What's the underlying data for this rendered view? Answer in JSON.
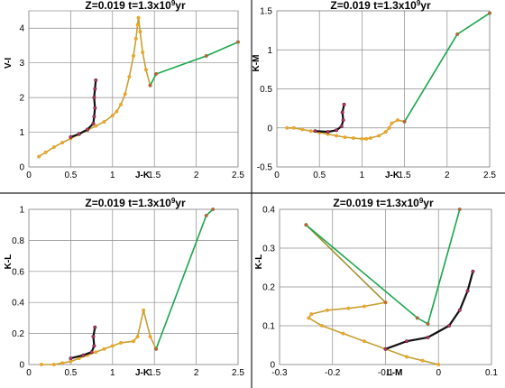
{
  "chart_data": [
    {
      "type": "line",
      "title_main": "Z=0.019   t=1.3x10",
      "title_exp": "9",
      "title_unit": "yr",
      "xlabel": "J-K",
      "ylabel": "V-I",
      "xlim": [
        0,
        2.5
      ],
      "ylim": [
        0,
        4.5
      ],
      "xticks": [
        "0",
        "0.5",
        "1",
        "1.5",
        "2",
        "2.5"
      ],
      "yticks": [
        "0",
        "1",
        "2",
        "3",
        "4"
      ],
      "grid": true,
      "series": [
        {
          "color": "#c8a032",
          "marker": "#f5a623",
          "values": [
            [
              0.12,
              0.3
            ],
            [
              0.2,
              0.42
            ],
            [
              0.3,
              0.57
            ],
            [
              0.4,
              0.7
            ],
            [
              0.5,
              0.82
            ],
            [
              0.6,
              0.94
            ],
            [
              0.7,
              1.06
            ],
            [
              0.8,
              1.18
            ],
            [
              0.9,
              1.3
            ],
            [
              1.0,
              1.48
            ],
            [
              1.05,
              1.6
            ],
            [
              1.1,
              1.8
            ],
            [
              1.15,
              2.1
            ],
            [
              1.2,
              2.6
            ],
            [
              1.25,
              3.2
            ],
            [
              1.28,
              3.7
            ],
            [
              1.3,
              4.1
            ],
            [
              1.31,
              4.3
            ],
            [
              1.33,
              3.9
            ],
            [
              1.36,
              3.3
            ],
            [
              1.4,
              2.8
            ],
            [
              1.45,
              2.35
            ]
          ]
        },
        {
          "color": "#1aa64b",
          "marker": "#e05030",
          "values": [
            [
              1.45,
              2.35
            ],
            [
              1.52,
              2.68
            ],
            [
              2.12,
              3.2
            ],
            [
              2.5,
              3.6
            ]
          ]
        },
        {
          "color": "#111111",
          "marker": "#c0306a",
          "values": [
            [
              0.5,
              0.86
            ],
            [
              0.6,
              0.95
            ],
            [
              0.7,
              1.08
            ],
            [
              0.77,
              1.25
            ],
            [
              0.78,
              1.45
            ],
            [
              0.79,
              1.7
            ],
            [
              0.78,
              2.0
            ],
            [
              0.79,
              2.25
            ],
            [
              0.8,
              2.5
            ]
          ]
        }
      ]
    },
    {
      "type": "line",
      "title_main": "Z=0.019   t=1.3x10",
      "title_exp": "9",
      "title_unit": "yr",
      "xlabel": "J-K",
      "ylabel": "K-M",
      "xlim": [
        0,
        2.5
      ],
      "ylim": [
        -0.5,
        1.5
      ],
      "xticks": [
        "0",
        "0.5",
        "1",
        "1.5",
        "2",
        "2.5"
      ],
      "yticks": [
        "-0.5",
        "0",
        "0.5",
        "1",
        "1.5"
      ],
      "grid": true,
      "series": [
        {
          "color": "#c8a032",
          "marker": "#f5a623",
          "values": [
            [
              0.12,
              0.0
            ],
            [
              0.2,
              0.0
            ],
            [
              0.3,
              -0.02
            ],
            [
              0.4,
              -0.04
            ],
            [
              0.5,
              -0.06
            ],
            [
              0.6,
              -0.08
            ],
            [
              0.7,
              -0.1
            ],
            [
              0.8,
              -0.12
            ],
            [
              0.9,
              -0.13
            ],
            [
              1.0,
              -0.14
            ],
            [
              1.05,
              -0.14
            ],
            [
              1.1,
              -0.13
            ],
            [
              1.2,
              -0.1
            ],
            [
              1.28,
              -0.05
            ],
            [
              1.32,
              0.0
            ],
            [
              1.35,
              0.06
            ],
            [
              1.42,
              0.1
            ],
            [
              1.5,
              0.08
            ]
          ]
        },
        {
          "color": "#1aa64b",
          "marker": "#e05030",
          "values": [
            [
              1.5,
              0.08
            ],
            [
              2.12,
              1.2
            ],
            [
              2.5,
              1.47
            ]
          ]
        },
        {
          "color": "#111111",
          "marker": "#c0306a",
          "values": [
            [
              0.45,
              -0.04
            ],
            [
              0.6,
              -0.05
            ],
            [
              0.7,
              -0.03
            ],
            [
              0.76,
              0.02
            ],
            [
              0.78,
              0.1
            ],
            [
              0.77,
              0.2
            ],
            [
              0.79,
              0.3
            ]
          ]
        }
      ]
    },
    {
      "type": "line",
      "title_main": "Z=0.019   t=1.3x10",
      "title_exp": "9",
      "title_unit": "yr",
      "xlabel": "J-K",
      "ylabel": "K-L",
      "xlim": [
        0,
        2.5
      ],
      "ylim": [
        0,
        1
      ],
      "xticks": [
        "0",
        "0.5",
        "1",
        "1.5",
        "2",
        "2.5"
      ],
      "yticks": [
        "0",
        "0.2",
        "0.4",
        "0.6",
        "0.8",
        "1"
      ],
      "grid": true,
      "series": [
        {
          "color": "#c8a032",
          "marker": "#f5a623",
          "values": [
            [
              0.15,
              0.0
            ],
            [
              0.3,
              0.0
            ],
            [
              0.4,
              0.01
            ],
            [
              0.5,
              0.02
            ],
            [
              0.6,
              0.04
            ],
            [
              0.7,
              0.06
            ],
            [
              0.8,
              0.08
            ],
            [
              0.9,
              0.1
            ],
            [
              1.0,
              0.12
            ],
            [
              1.1,
              0.14
            ],
            [
              1.25,
              0.15
            ],
            [
              1.3,
              0.18
            ],
            [
              1.37,
              0.35
            ],
            [
              1.45,
              0.18
            ],
            [
              1.52,
              0.1
            ]
          ]
        },
        {
          "color": "#1aa64b",
          "marker": "#e05030",
          "values": [
            [
              1.52,
              0.1
            ],
            [
              2.12,
              0.96
            ],
            [
              2.2,
              1.0
            ]
          ]
        },
        {
          "color": "#111111",
          "marker": "#c0306a",
          "values": [
            [
              0.5,
              0.04
            ],
            [
              0.65,
              0.06
            ],
            [
              0.75,
              0.08
            ],
            [
              0.78,
              0.12
            ],
            [
              0.77,
              0.18
            ],
            [
              0.79,
              0.24
            ]
          ]
        }
      ]
    },
    {
      "type": "line",
      "title_main": "Z=0.019   t=1.3x10",
      "title_exp": "9",
      "title_unit": "yr",
      "xlabel": "L-M",
      "ylabel": "K-L",
      "xlim": [
        -0.3,
        0.1
      ],
      "ylim": [
        0,
        0.4
      ],
      "xticks": [
        "-0.3",
        "-0.2",
        "-0.1",
        "0",
        "0.1"
      ],
      "yticks": [
        "0",
        "0.1",
        "0.2",
        "0.3",
        "0.4"
      ],
      "grid": true,
      "series": [
        {
          "color": "#c8a032",
          "marker": "#f5a623",
          "values": [
            [
              0.0,
              0.0
            ],
            [
              -0.03,
              0.01
            ],
            [
              -0.06,
              0.02
            ],
            [
              -0.1,
              0.04
            ],
            [
              -0.14,
              0.06
            ],
            [
              -0.18,
              0.08
            ],
            [
              -0.22,
              0.1
            ],
            [
              -0.245,
              0.12
            ],
            [
              -0.24,
              0.13
            ],
            [
              -0.21,
              0.14
            ],
            [
              -0.17,
              0.145
            ],
            [
              -0.14,
              0.15
            ],
            [
              -0.1,
              0.16
            ]
          ]
        },
        {
          "color": "#a09030",
          "marker": "#d06030",
          "values": [
            [
              -0.1,
              0.16
            ],
            [
              -0.25,
              0.36
            ]
          ]
        },
        {
          "color": "#1aa64b",
          "marker": "#e05030",
          "values": [
            [
              -0.25,
              0.36
            ],
            [
              -0.04,
              0.12
            ],
            [
              -0.02,
              0.105
            ],
            [
              0.04,
              0.4
            ]
          ]
        },
        {
          "color": "#111111",
          "marker": "#c0306a",
          "values": [
            [
              -0.1,
              0.04
            ],
            [
              -0.06,
              0.06
            ],
            [
              -0.02,
              0.07
            ],
            [
              0.02,
              0.1
            ],
            [
              0.04,
              0.14
            ],
            [
              0.055,
              0.19
            ],
            [
              0.065,
              0.24
            ]
          ]
        }
      ]
    }
  ]
}
